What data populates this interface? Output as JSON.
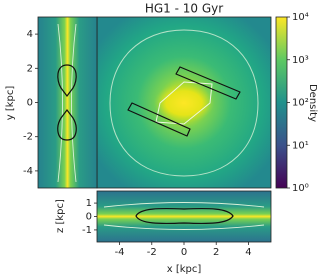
{
  "chart_data": [
    {
      "type": "heatmap",
      "title": "HG1 - 10 Gyr",
      "xlim": [
        -5.4,
        5.4
      ],
      "ylim": [
        -5,
        5
      ]
    },
    {
      "type": "heatmap",
      "ylabel": "y [kpc]",
      "xlim": [
        -1.9,
        1.9
      ],
      "ylim": [
        -5,
        5
      ],
      "yticks": [
        -4,
        -2,
        0,
        2,
        4
      ]
    },
    {
      "type": "heatmap",
      "xlabel": "x [kpc]",
      "ylabel": "z [kpc]",
      "xlim": [
        -5.4,
        5.4
      ],
      "xticks": [
        -4,
        -2,
        0,
        2,
        4
      ],
      "ylim": [
        -1.9,
        1.9
      ],
      "yticks": [
        -1,
        0,
        1
      ]
    },
    {
      "type": "colorbar",
      "label": "Density",
      "log_scale": true,
      "ylim": [
        1,
        10000
      ],
      "yticks": [
        {
          "value": 1,
          "label": "10⁰"
        },
        {
          "value": 10,
          "label": "10¹"
        },
        {
          "value": 100,
          "label": "10²"
        },
        {
          "value": 1000,
          "label": "10³"
        },
        {
          "value": 10000,
          "label": "10⁴"
        }
      ]
    }
  ]
}
